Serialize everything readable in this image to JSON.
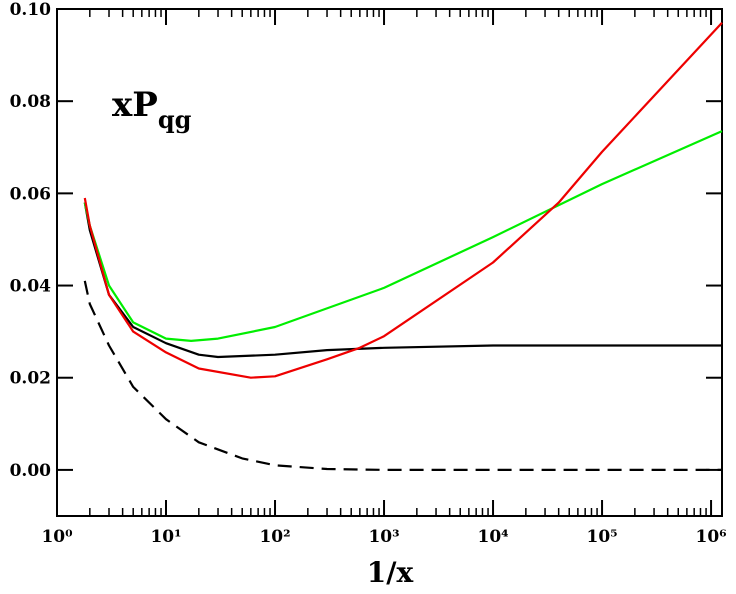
{
  "chart_data": {
    "type": "line",
    "annotation": {
      "text": "xP",
      "subscript": "qg"
    },
    "x_label": "1/x",
    "log_x": true,
    "xlim": [
      1,
      1260000
    ],
    "ylim": [
      -0.01,
      0.1
    ],
    "xticks": [
      {
        "value": 1,
        "label": "10⁰"
      },
      {
        "value": 10,
        "label": "10¹"
      },
      {
        "value": 100,
        "label": "10²"
      },
      {
        "value": 1000,
        "label": "10³"
      },
      {
        "value": 10000,
        "label": "10⁴"
      },
      {
        "value": 100000,
        "label": "10⁵"
      },
      {
        "value": 1000000,
        "label": "10⁶"
      }
    ],
    "yticks": [
      {
        "value": 0,
        "label": "0.00"
      },
      {
        "value": 0.02,
        "label": "0.02"
      },
      {
        "value": 0.04,
        "label": "0.04"
      },
      {
        "value": 0.06,
        "label": "0.06"
      },
      {
        "value": 0.08,
        "label": "0.08"
      },
      {
        "value": 0.1,
        "label": "0.10"
      }
    ],
    "series": [
      {
        "color": "#000000",
        "dashed": false,
        "x": [
          1.8,
          2,
          3,
          5,
          10,
          20,
          30,
          100,
          300,
          1000,
          10000,
          100000,
          1260000
        ],
        "values": [
          0.058,
          0.052,
          0.038,
          0.031,
          0.0275,
          0.025,
          0.0245,
          0.025,
          0.026,
          0.0265,
          0.027,
          0.027,
          0.027
        ]
      },
      {
        "color": "#00ee00",
        "dashed": false,
        "x": [
          1.8,
          2,
          3,
          5,
          10,
          17,
          30,
          100,
          1000,
          10000,
          100000,
          1260000
        ],
        "values": [
          0.058,
          0.053,
          0.04,
          0.032,
          0.0285,
          0.028,
          0.0285,
          0.031,
          0.0395,
          0.0505,
          0.062,
          0.0735
        ]
      },
      {
        "color": "#ee0000",
        "dashed": false,
        "x": [
          1.8,
          2,
          3,
          5,
          10,
          20,
          60,
          100,
          300,
          600,
          1000,
          10000,
          40000,
          100000,
          1260000
        ],
        "values": [
          0.059,
          0.053,
          0.038,
          0.03,
          0.0255,
          0.022,
          0.02,
          0.0203,
          0.024,
          0.0265,
          0.029,
          0.045,
          0.058,
          0.069,
          0.097
        ]
      },
      {
        "color": "#000000",
        "dashed": true,
        "x": [
          1.8,
          2,
          3,
          5,
          10,
          20,
          50,
          100,
          300,
          1000,
          1000000,
          1260000
        ],
        "values": [
          0.041,
          0.036,
          0.027,
          0.018,
          0.011,
          0.006,
          0.0025,
          0.001,
          0.0002,
          0,
          0,
          0
        ]
      }
    ]
  }
}
